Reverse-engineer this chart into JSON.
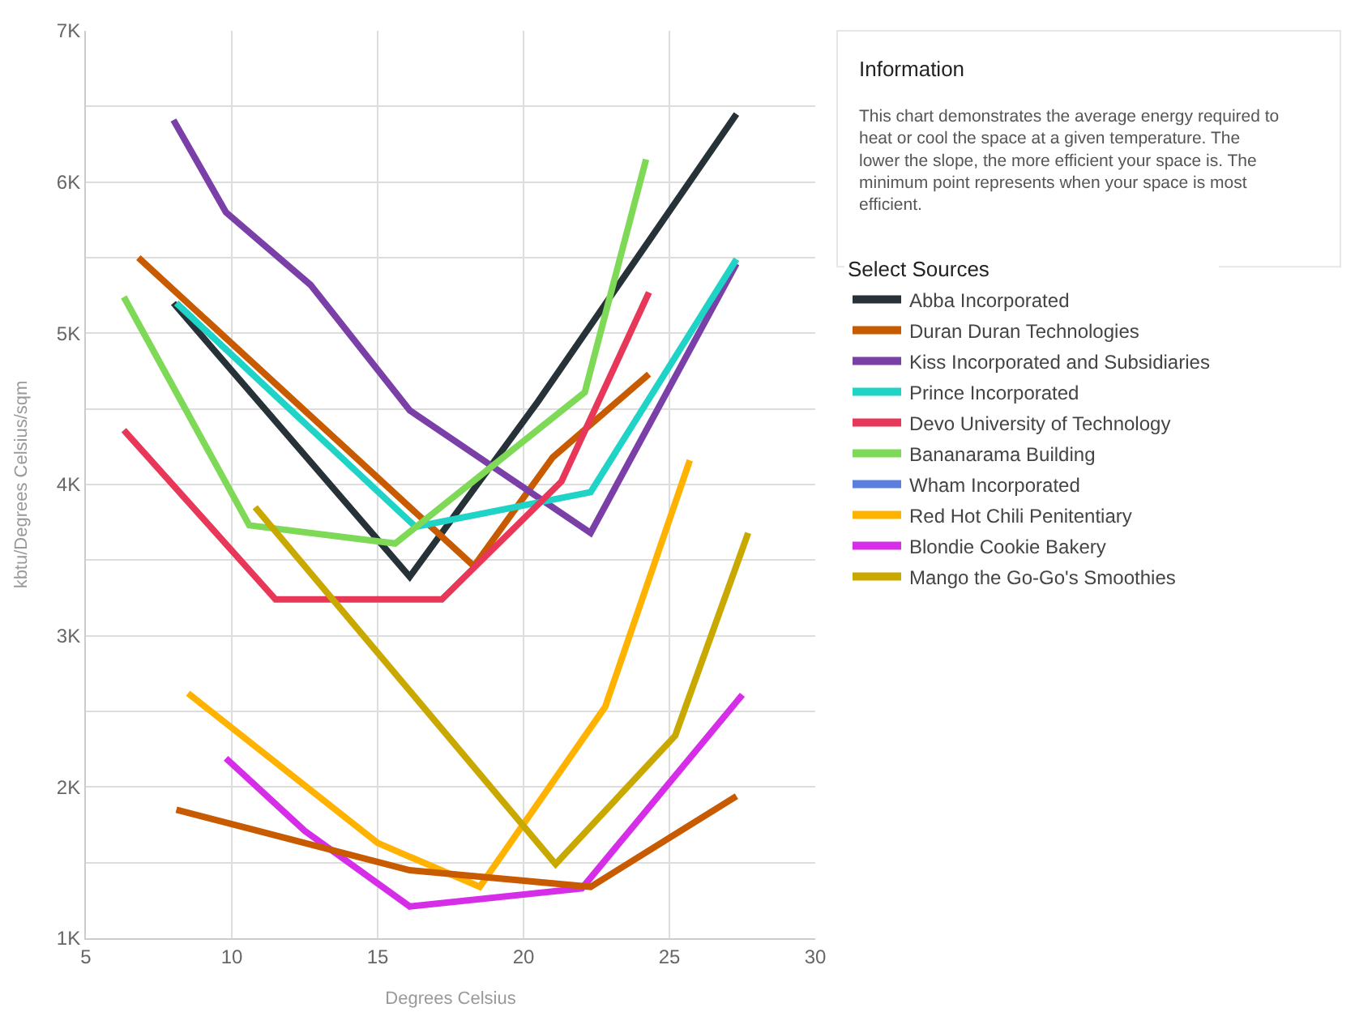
{
  "chart_data": {
    "type": "line",
    "xlabel": "Degrees Celsius",
    "ylabel": "kbtu/Degrees Celsius/sqm",
    "legend_title": "Select Sources",
    "legend": "right",
    "grid": true,
    "marker": "none",
    "line_style": "solid",
    "xlim": [
      5,
      30
    ],
    "xticks": [
      5,
      10,
      15,
      20,
      25,
      30
    ],
    "ylim": [
      1000,
      7000
    ],
    "yticks": [
      {
        "value": 1000,
        "label": "1K"
      },
      {
        "value": 1500,
        "label": null
      },
      {
        "value": 2000,
        "label": "2K"
      },
      {
        "value": 2500,
        "label": null
      },
      {
        "value": 3000,
        "label": "3K"
      },
      {
        "value": 3500,
        "label": null
      },
      {
        "value": 4000,
        "label": "4K"
      },
      {
        "value": 4500,
        "label": null
      },
      {
        "value": 5000,
        "label": "5K"
      },
      {
        "value": 5500,
        "label": null
      },
      {
        "value": 6000,
        "label": "6K"
      },
      {
        "value": 6500,
        "label": null
      },
      {
        "value": 7000,
        "label": "7K"
      }
    ],
    "annotations": [
      "Information",
      "This chart demonstrates the average energy required to heat or cool the space at a given temperature. The lower the slope, the more efficient your space is. The minimum point represents when your space is most efficient."
    ],
    "series": [
      {
        "name": "Abba Incorporated",
        "color": "#263238",
        "x": [
          8.0,
          16.1,
          20.5,
          27.3
        ],
        "values": [
          5200,
          3390,
          4550,
          6450
        ]
      },
      {
        "name": "Duran Duran Technologies",
        "color": "#c85a00",
        "x": [
          6.8,
          18.3,
          21.0,
          24.3
        ],
        "values": [
          5500,
          3460,
          4180,
          4730
        ]
      },
      {
        "name": "Kiss Incorporated and Subsidiaries",
        "color": "#7b3fa8",
        "x": [
          8.0,
          9.8,
          12.7,
          16.1,
          22.3,
          27.3
        ],
        "values": [
          6410,
          5800,
          5320,
          4490,
          3680,
          5460
        ]
      },
      {
        "name": "Prince Incorporated",
        "color": "#1fd3c6",
        "x": [
          8.1,
          16.3,
          22.3,
          27.3
        ],
        "values": [
          5200,
          3720,
          3950,
          5490
        ]
      },
      {
        "name": "Devo University of Technology",
        "color": "#e8385a",
        "x": [
          6.3,
          11.5,
          17.2,
          21.3,
          24.3
        ],
        "values": [
          4360,
          3240,
          3240,
          4020,
          5270
        ]
      },
      {
        "name": "Bananarama Building",
        "color": "#7ed957",
        "x": [
          6.3,
          10.6,
          15.6,
          22.1,
          24.2
        ],
        "values": [
          5240,
          3730,
          3610,
          4610,
          6150
        ]
      },
      {
        "name": "Wham Incorporated",
        "color": "#5b7fde",
        "values": [
          null
        ]
      },
      {
        "name": "Red Hot Chili Penitentiary",
        "color": "#ffb300",
        "x": [
          8.5,
          15.0,
          18.5,
          22.8,
          25.7
        ],
        "values": [
          2620,
          1630,
          1340,
          2530,
          4160
        ]
      },
      {
        "name": "Blondie Cookie Bakery",
        "color": "#d62ee8",
        "x": [
          9.8,
          12.5,
          16.1,
          22.0,
          27.5
        ],
        "values": [
          2190,
          1710,
          1210,
          1330,
          2610
        ]
      },
      {
        "name": "Mango the Go-Go's Smoothies",
        "color": "#c9a800",
        "x": [
          10.8,
          21.1,
          25.2,
          27.7
        ],
        "values": [
          3850,
          1490,
          2340,
          3680
        ]
      },
      {
        "color": "#c85a00",
        "x": [
          8.1,
          16.1,
          22.3,
          27.3
        ],
        "values": [
          1850,
          1450,
          1340,
          1940
        ]
      }
    ]
  }
}
